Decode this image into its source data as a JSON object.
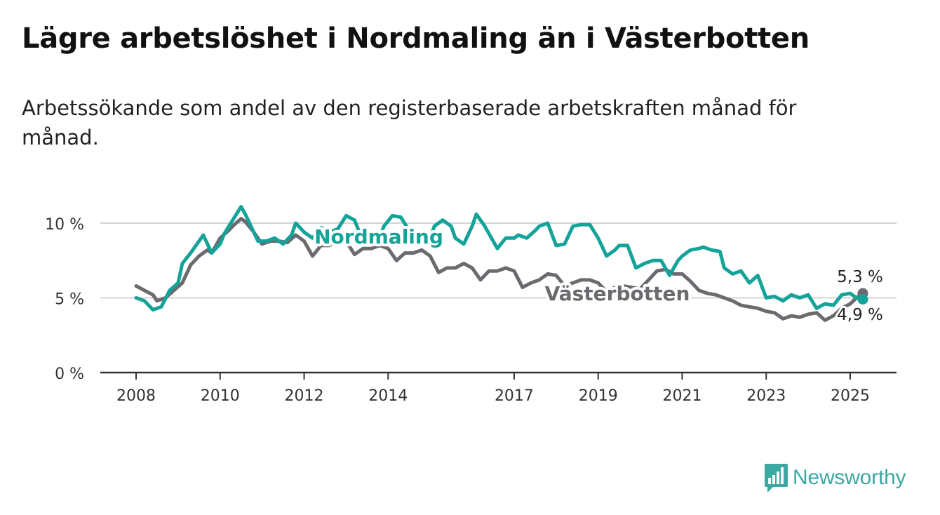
{
  "title": "Lägre arbetslöshet i Nordmaling än i Västerbotten",
  "subtitle": "Arbetssökande som andel av den registerbaserade arbetskraften månad för månad.",
  "brand": {
    "name": "Newsworthy",
    "color": "#3ba8a2",
    "icon": "bar-chart-speech-icon"
  },
  "chart_data": {
    "type": "line",
    "x_unit": "year",
    "xlim": [
      2008,
      2025.6
    ],
    "ylim": [
      0,
      11
    ],
    "grid": true,
    "x_ticks": [
      {
        "value": 2008,
        "label": "2008"
      },
      {
        "value": 2010,
        "label": "2010"
      },
      {
        "value": 2012,
        "label": "2012"
      },
      {
        "value": 2014,
        "label": "2014"
      },
      {
        "value": 2017,
        "label": "2017"
      },
      {
        "value": 2019,
        "label": "2019"
      },
      {
        "value": 2021,
        "label": "2021"
      },
      {
        "value": 2023,
        "label": "2023"
      },
      {
        "value": 2025,
        "label": "2025"
      }
    ],
    "y_ticks": [
      {
        "value": 0,
        "label": "0 %"
      },
      {
        "value": 5,
        "label": "5 %"
      },
      {
        "value": 10,
        "label": "10 %"
      }
    ],
    "series": [
      {
        "name": "Västerbotten",
        "color": "#6b6a6f",
        "end_label": "5,3 %",
        "points": [
          [
            2008.0,
            5.8
          ],
          [
            2008.2,
            5.5
          ],
          [
            2008.4,
            5.2
          ],
          [
            2008.5,
            4.8
          ],
          [
            2008.7,
            5.0
          ],
          [
            2008.9,
            5.5
          ],
          [
            2009.1,
            6.0
          ],
          [
            2009.3,
            7.2
          ],
          [
            2009.5,
            7.8
          ],
          [
            2009.7,
            8.2
          ],
          [
            2009.8,
            8.0
          ],
          [
            2010.0,
            9.0
          ],
          [
            2010.2,
            9.5
          ],
          [
            2010.3,
            9.8
          ],
          [
            2010.5,
            10.3
          ],
          [
            2010.6,
            10.1
          ],
          [
            2010.8,
            9.4
          ],
          [
            2011.0,
            8.6
          ],
          [
            2011.2,
            8.8
          ],
          [
            2011.4,
            8.8
          ],
          [
            2011.6,
            8.7
          ],
          [
            2011.8,
            9.2
          ],
          [
            2012.0,
            8.8
          ],
          [
            2012.2,
            7.8
          ],
          [
            2012.4,
            8.5
          ],
          [
            2012.6,
            8.5
          ],
          [
            2012.8,
            8.9
          ],
          [
            2013.0,
            8.8
          ],
          [
            2013.2,
            7.9
          ],
          [
            2013.4,
            8.3
          ],
          [
            2013.6,
            8.3
          ],
          [
            2013.8,
            8.5
          ],
          [
            2014.0,
            8.3
          ],
          [
            2014.2,
            7.5
          ],
          [
            2014.4,
            8.0
          ],
          [
            2014.6,
            8.0
          ],
          [
            2014.8,
            8.2
          ],
          [
            2015.0,
            7.8
          ],
          [
            2015.2,
            6.7
          ],
          [
            2015.4,
            7.0
          ],
          [
            2015.6,
            7.0
          ],
          [
            2015.8,
            7.3
          ],
          [
            2016.0,
            7.0
          ],
          [
            2016.2,
            6.2
          ],
          [
            2016.4,
            6.8
          ],
          [
            2016.6,
            6.8
          ],
          [
            2016.8,
            7.0
          ],
          [
            2017.0,
            6.8
          ],
          [
            2017.2,
            5.7
          ],
          [
            2017.4,
            6.0
          ],
          [
            2017.6,
            6.2
          ],
          [
            2017.8,
            6.6
          ],
          [
            2018.0,
            6.5
          ],
          [
            2018.2,
            5.8
          ],
          [
            2018.4,
            6.0
          ],
          [
            2018.6,
            6.2
          ],
          [
            2018.8,
            6.2
          ],
          [
            2019.0,
            6.0
          ],
          [
            2019.2,
            5.4
          ],
          [
            2019.4,
            5.7
          ],
          [
            2019.6,
            5.8
          ],
          [
            2019.8,
            5.7
          ],
          [
            2020.0,
            5.6
          ],
          [
            2020.2,
            6.2
          ],
          [
            2020.4,
            6.8
          ],
          [
            2020.6,
            6.9
          ],
          [
            2020.8,
            6.6
          ],
          [
            2021.0,
            6.6
          ],
          [
            2021.2,
            6.1
          ],
          [
            2021.4,
            5.5
          ],
          [
            2021.6,
            5.3
          ],
          [
            2021.8,
            5.2
          ],
          [
            2022.0,
            5.0
          ],
          [
            2022.2,
            4.8
          ],
          [
            2022.4,
            4.5
          ],
          [
            2022.6,
            4.4
          ],
          [
            2022.8,
            4.3
          ],
          [
            2023.0,
            4.1
          ],
          [
            2023.2,
            4.0
          ],
          [
            2023.4,
            3.6
          ],
          [
            2023.6,
            3.8
          ],
          [
            2023.8,
            3.7
          ],
          [
            2024.0,
            3.9
          ],
          [
            2024.2,
            4.0
          ],
          [
            2024.4,
            3.5
          ],
          [
            2024.6,
            3.8
          ],
          [
            2024.8,
            4.3
          ],
          [
            2025.0,
            4.6
          ],
          [
            2025.15,
            5.0
          ],
          [
            2025.3,
            5.3
          ]
        ]
      },
      {
        "name": "Nordmaling",
        "color": "#14a399",
        "end_label": "4,9 %",
        "points": [
          [
            2008.0,
            5.0
          ],
          [
            2008.2,
            4.8
          ],
          [
            2008.3,
            4.5
          ],
          [
            2008.4,
            4.2
          ],
          [
            2008.6,
            4.4
          ],
          [
            2008.8,
            5.5
          ],
          [
            2009.0,
            6.0
          ],
          [
            2009.1,
            7.3
          ],
          [
            2009.3,
            8.0
          ],
          [
            2009.5,
            8.8
          ],
          [
            2009.6,
            9.2
          ],
          [
            2009.8,
            8.0
          ],
          [
            2010.0,
            8.6
          ],
          [
            2010.1,
            9.3
          ],
          [
            2010.3,
            10.2
          ],
          [
            2010.5,
            11.1
          ],
          [
            2010.6,
            10.6
          ],
          [
            2010.8,
            9.4
          ],
          [
            2010.9,
            8.8
          ],
          [
            2011.1,
            8.8
          ],
          [
            2011.3,
            9.0
          ],
          [
            2011.5,
            8.6
          ],
          [
            2011.7,
            9.2
          ],
          [
            2011.8,
            10.0
          ],
          [
            2012.0,
            9.4
          ],
          [
            2012.2,
            9.0
          ],
          [
            2012.4,
            9.7
          ],
          [
            2012.6,
            9.4
          ],
          [
            2012.8,
            9.6
          ],
          [
            2013.0,
            10.5
          ],
          [
            2013.2,
            10.2
          ],
          [
            2013.3,
            9.5
          ],
          [
            2013.5,
            9.5
          ],
          [
            2013.6,
            8.8
          ],
          [
            2013.8,
            9.0
          ],
          [
            2013.9,
            9.8
          ],
          [
            2014.1,
            10.5
          ],
          [
            2014.3,
            10.4
          ],
          [
            2014.5,
            9.5
          ],
          [
            2014.6,
            8.7
          ],
          [
            2014.8,
            9.0
          ],
          [
            2015.0,
            8.9
          ],
          [
            2015.1,
            9.8
          ],
          [
            2015.3,
            10.2
          ],
          [
            2015.5,
            9.8
          ],
          [
            2015.6,
            9.0
          ],
          [
            2015.8,
            8.6
          ],
          [
            2016.0,
            9.8
          ],
          [
            2016.1,
            10.6
          ],
          [
            2016.3,
            9.8
          ],
          [
            2016.5,
            8.8
          ],
          [
            2016.6,
            8.3
          ],
          [
            2016.8,
            9.0
          ],
          [
            2017.0,
            9.0
          ],
          [
            2017.1,
            9.2
          ],
          [
            2017.3,
            9.0
          ],
          [
            2017.5,
            9.5
          ],
          [
            2017.6,
            9.8
          ],
          [
            2017.8,
            10.0
          ],
          [
            2018.0,
            8.5
          ],
          [
            2018.2,
            8.6
          ],
          [
            2018.4,
            9.8
          ],
          [
            2018.6,
            9.9
          ],
          [
            2018.8,
            9.9
          ],
          [
            2019.0,
            9.0
          ],
          [
            2019.2,
            7.8
          ],
          [
            2019.4,
            8.2
          ],
          [
            2019.5,
            8.5
          ],
          [
            2019.7,
            8.5
          ],
          [
            2019.9,
            7.0
          ],
          [
            2020.1,
            7.3
          ],
          [
            2020.3,
            7.5
          ],
          [
            2020.5,
            7.5
          ],
          [
            2020.7,
            6.5
          ],
          [
            2020.9,
            7.5
          ],
          [
            2021.0,
            7.8
          ],
          [
            2021.2,
            8.2
          ],
          [
            2021.4,
            8.3
          ],
          [
            2021.5,
            8.4
          ],
          [
            2021.7,
            8.2
          ],
          [
            2021.9,
            8.1
          ],
          [
            2022.0,
            7.0
          ],
          [
            2022.2,
            6.6
          ],
          [
            2022.4,
            6.8
          ],
          [
            2022.6,
            6.0
          ],
          [
            2022.8,
            6.5
          ],
          [
            2023.0,
            5.0
          ],
          [
            2023.2,
            5.1
          ],
          [
            2023.4,
            4.8
          ],
          [
            2023.6,
            5.2
          ],
          [
            2023.8,
            5.0
          ],
          [
            2024.0,
            5.2
          ],
          [
            2024.2,
            4.3
          ],
          [
            2024.4,
            4.6
          ],
          [
            2024.6,
            4.5
          ],
          [
            2024.8,
            5.2
          ],
          [
            2025.0,
            5.3
          ],
          [
            2025.15,
            5.0
          ],
          [
            2025.3,
            4.9
          ]
        ]
      }
    ]
  }
}
